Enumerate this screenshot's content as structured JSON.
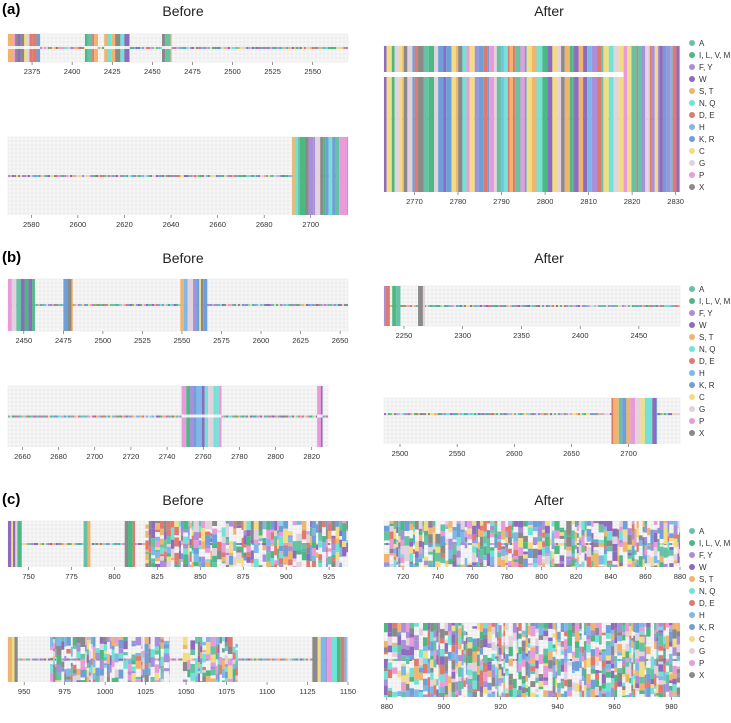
{
  "figure": {
    "column_titles": {
      "before": "Before",
      "after": "After"
    },
    "legend": [
      {
        "label": "A",
        "color": "#66c2a5"
      },
      {
        "label": "I, L, V, M",
        "color": "#4cb882"
      },
      {
        "label": "F, Y",
        "color": "#a98fd9"
      },
      {
        "label": "W",
        "color": "#8e6bbf"
      },
      {
        "label": "S, T",
        "color": "#f0b46e"
      },
      {
        "label": "N, Q",
        "color": "#6fe3d6"
      },
      {
        "label": "D, E",
        "color": "#e07a6e"
      },
      {
        "label": "H",
        "color": "#7fb8e8"
      },
      {
        "label": "K, R",
        "color": "#6f9fd8"
      },
      {
        "label": "C",
        "color": "#f2dc84"
      },
      {
        "label": "G",
        "color": "#e2d2de"
      },
      {
        "label": "P",
        "color": "#e99ad9"
      },
      {
        "label": "X",
        "color": "#8a8a8a"
      }
    ]
  },
  "chart_data": [
    {
      "type": "heatmap",
      "panel": "(a)",
      "column": "Before",
      "row": 1,
      "x": [
        2375,
        2400,
        2425,
        2450,
        2475,
        2500,
        2525,
        2550
      ],
      "xlim": [
        2360,
        2572
      ],
      "blocks": [
        [
          2360,
          2380,
          "dense"
        ],
        [
          2408,
          2416,
          "dense"
        ],
        [
          2420,
          2436,
          "dense"
        ],
        [
          2456,
          2462,
          "dense"
        ]
      ],
      "gap_rows": true
    },
    {
      "type": "heatmap",
      "panel": "(a)",
      "column": "Before",
      "row": 2,
      "x": [
        2580,
        2600,
        2620,
        2640,
        2660,
        2680,
        2700
      ],
      "xlim": [
        2570,
        2716
      ],
      "blocks": [
        [
          2692,
          2716,
          "dense"
        ]
      ],
      "gap_rows": false
    },
    {
      "type": "heatmap",
      "panel": "(a)",
      "column": "After",
      "row": 1,
      "x": [
        2770,
        2780,
        2790,
        2800,
        2810,
        2820,
        2830
      ],
      "xlim": [
        2763,
        2831
      ],
      "blocks": [
        [
          2763,
          2831,
          "dense"
        ]
      ],
      "gap_rows": false
    },
    {
      "type": "heatmap",
      "panel": "(b)",
      "column": "Before",
      "row": 1,
      "x": [
        2450,
        2475,
        2500,
        2525,
        2550,
        2575,
        2600,
        2625,
        2650
      ],
      "xlim": [
        2440,
        2655
      ],
      "blocks": [
        [
          2440,
          2457,
          "dense"
        ],
        [
          2475,
          2481,
          "dense"
        ],
        [
          2549,
          2566,
          "dense"
        ]
      ],
      "gap_rows": false
    },
    {
      "type": "heatmap",
      "panel": "(b)",
      "column": "Before",
      "row": 2,
      "x": [
        2660,
        2680,
        2700,
        2720,
        2740,
        2760,
        2780,
        2800,
        2820
      ],
      "xlim": [
        2652,
        2829
      ],
      "blocks": [
        [
          2748,
          2770,
          "dense"
        ],
        [
          2823,
          2826,
          "dense"
        ]
      ],
      "gap_rows": true
    },
    {
      "type": "heatmap",
      "panel": "(b)",
      "column": "After",
      "row": 1,
      "x": [
        2250,
        2300,
        2350,
        2400,
        2450
      ],
      "xlim": [
        2233,
        2485
      ],
      "blocks": [
        [
          2233,
          2238,
          "dense"
        ],
        [
          2240,
          2247,
          "dense"
        ],
        [
          2262,
          2268,
          "dense"
        ]
      ],
      "gap_rows": false
    },
    {
      "type": "heatmap",
      "panel": "(b)",
      "column": "After",
      "row": 2,
      "x": [
        2500,
        2550,
        2600,
        2650,
        2700
      ],
      "xlim": [
        2486,
        2745
      ],
      "blocks": [
        [
          2685,
          2725,
          "dense"
        ]
      ],
      "gap_rows": false
    },
    {
      "type": "heatmap",
      "panel": "(c)",
      "column": "Before",
      "row": 1,
      "x": [
        750,
        775,
        800,
        825,
        850,
        875,
        900,
        925
      ],
      "xlim": [
        738,
        936
      ],
      "blocks": [
        [
          738,
          746,
          "dense"
        ],
        [
          782,
          786,
          "dense"
        ],
        [
          806,
          812,
          "dense"
        ],
        [
          818,
          936,
          "ragged"
        ]
      ],
      "gap_rows": false
    },
    {
      "type": "heatmap",
      "panel": "(c)",
      "column": "Before",
      "row": 2,
      "x": [
        950,
        975,
        1000,
        1025,
        1050,
        1075,
        1100,
        1125,
        1150
      ],
      "xlim": [
        940,
        1150
      ],
      "blocks": [
        [
          940,
          946,
          "dense"
        ],
        [
          966,
          1040,
          "ragged"
        ],
        [
          1048,
          1082,
          "ragged"
        ],
        [
          1128,
          1150,
          "dense"
        ]
      ],
      "gap_rows": false
    },
    {
      "type": "heatmap",
      "panel": "(c)",
      "column": "After",
      "row": 1,
      "x": [
        720,
        740,
        760,
        780,
        800,
        820,
        840,
        860,
        880
      ],
      "xlim": [
        709,
        880
      ],
      "blocks": [
        [
          709,
          880,
          "ragged"
        ]
      ],
      "gap_rows": false
    },
    {
      "type": "heatmap",
      "panel": "(c)",
      "column": "After",
      "row": 2,
      "x": [
        880,
        900,
        920,
        940,
        960,
        980
      ],
      "xlim": [
        879,
        983
      ],
      "blocks": [
        [
          879,
          983,
          "ragged"
        ]
      ],
      "gap_rows": false
    }
  ]
}
